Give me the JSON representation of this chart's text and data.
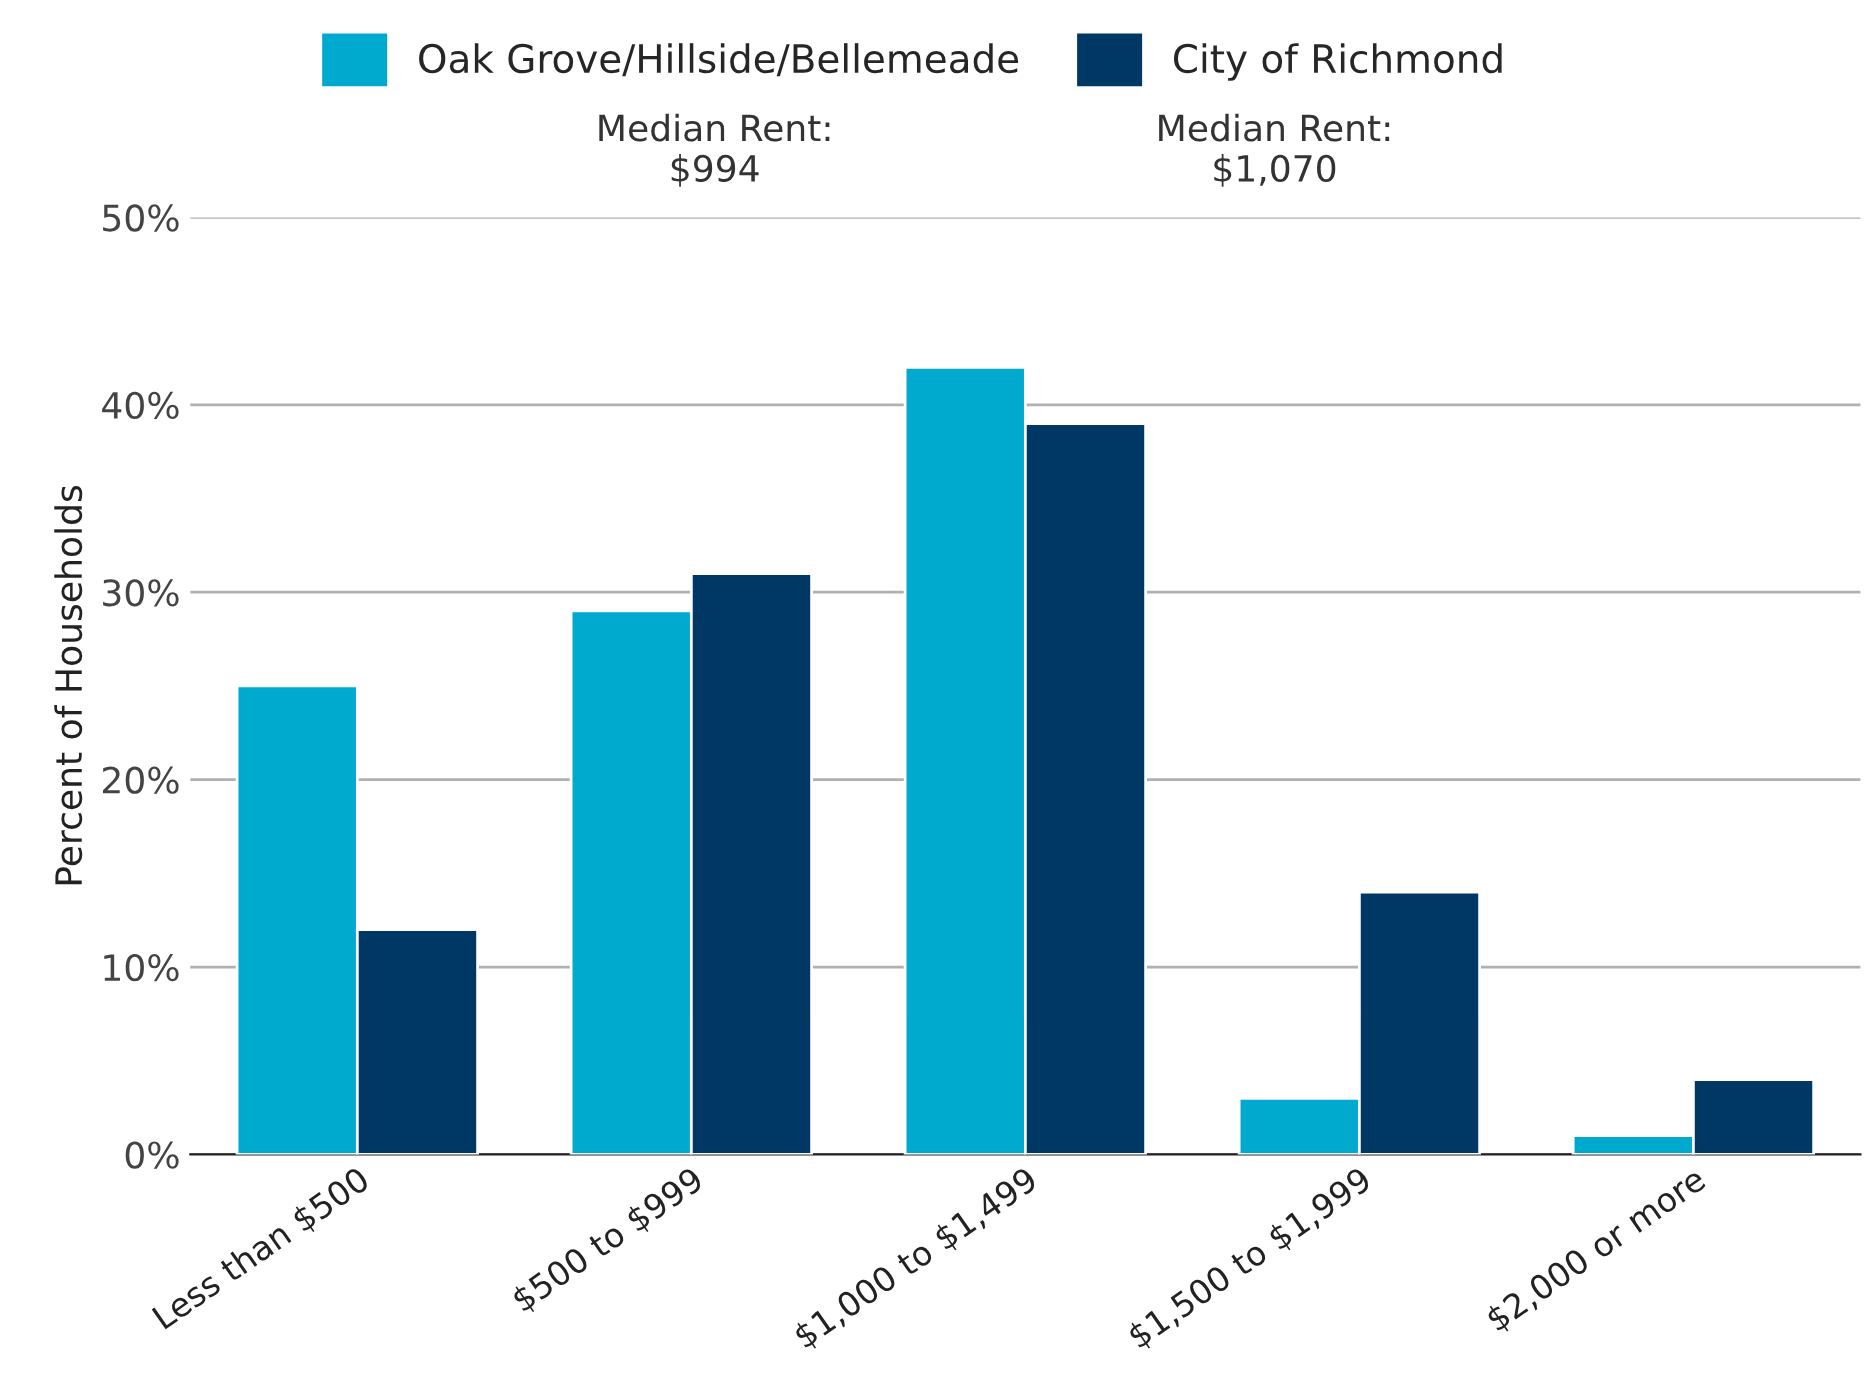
{
  "chart_data": {
    "type": "bar",
    "ylabel": "Percent of Households",
    "categories": [
      "Less than $500",
      "$500 to $999",
      "$1,000 to $1,499",
      "$1,500 to $1,999",
      "$2,000 or more"
    ],
    "series": [
      {
        "name": "Oak Grove/Hillside/Bellemeade",
        "color": "#00a9ce",
        "values": [
          25,
          29,
          42,
          3,
          1
        ]
      },
      {
        "name": "City of Richmond",
        "color": "#003865",
        "values": [
          12,
          31,
          39,
          14,
          4
        ]
      }
    ],
    "annotations": [
      "Median Rent:\n$994",
      "Median Rent:\n$1,070"
    ],
    "ylim": [
      0,
      50
    ],
    "yticks": [
      {
        "value": 0,
        "label": "0%"
      },
      {
        "value": 10,
        "label": "10%"
      },
      {
        "value": 20,
        "label": "20%"
      },
      {
        "value": 30,
        "label": "30%"
      },
      {
        "value": 40,
        "label": "40%"
      },
      {
        "value": 50,
        "label": "50%"
      }
    ],
    "grid": "y",
    "legend": "top"
  }
}
